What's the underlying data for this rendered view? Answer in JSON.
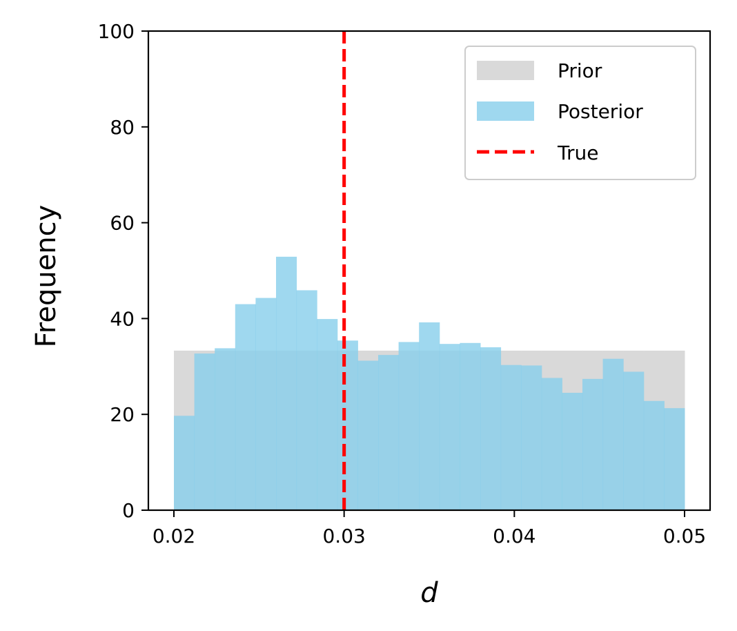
{
  "chart_data": {
    "type": "histogram",
    "xlabel": "d",
    "ylabel": "Frequency",
    "xlim": [
      0.0185,
      0.0515
    ],
    "ylim": [
      0,
      100
    ],
    "x_ticks": [
      "0.02",
      "0.03",
      "0.04",
      "0.05"
    ],
    "x_tick_values": [
      0.02,
      0.03,
      0.04,
      0.05
    ],
    "y_ticks": [
      "0",
      "20",
      "40",
      "60",
      "80",
      "100"
    ],
    "y_tick_values": [
      0,
      20,
      40,
      60,
      80,
      100
    ],
    "bin_edges": [
      0.02,
      0.0212,
      0.0224,
      0.0236,
      0.0248,
      0.026,
      0.0272,
      0.0284,
      0.0296,
      0.0308,
      0.032,
      0.0332,
      0.0344,
      0.0356,
      0.0368,
      0.038,
      0.0392,
      0.0404,
      0.0416,
      0.0428,
      0.044,
      0.0452,
      0.0464,
      0.0476,
      0.0488,
      0.05
    ],
    "series": [
      {
        "name": "Prior",
        "color": "#d9d9d9",
        "values": [
          33.3,
          33.3,
          33.3,
          33.3,
          33.3,
          33.3,
          33.3,
          33.3,
          33.3,
          33.3,
          33.3,
          33.3,
          33.3,
          33.3,
          33.3,
          33.3,
          33.3,
          33.3,
          33.3,
          33.3,
          33.3,
          33.3,
          33.3,
          33.3,
          33.3
        ]
      },
      {
        "name": "Posterior",
        "color": "#87ceeb",
        "opacity": 0.8,
        "values": [
          19.7,
          32.7,
          33.8,
          43.0,
          44.3,
          52.9,
          45.9,
          39.9,
          35.4,
          31.2,
          32.4,
          35.1,
          39.2,
          34.7,
          34.9,
          34.0,
          30.3,
          30.2,
          27.6,
          24.5,
          27.4,
          31.6,
          28.9,
          22.8,
          21.3
        ]
      }
    ],
    "true_line": {
      "name": "True",
      "x": 0.03,
      "color": "#ff0000"
    },
    "legend": {
      "position": "top-right",
      "entries": [
        "Prior",
        "Posterior",
        "True"
      ]
    },
    "grid": false
  }
}
